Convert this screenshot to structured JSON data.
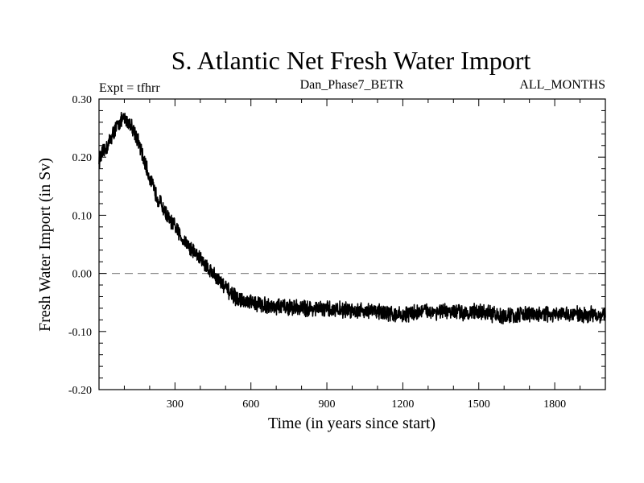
{
  "chart_data": {
    "type": "line",
    "title": "S. Atlantic Net Fresh Water Import",
    "subtitle_left": "Expt = tfhrr",
    "subtitle_center": "Dan_Phase7_BETR",
    "subtitle_right": "ALL_MONTHS",
    "xlabel": "Time (in years since start)",
    "ylabel": "Fresh Water Import (in Sv)",
    "xlim": [
      0,
      2000
    ],
    "ylim": [
      -0.2,
      0.3
    ],
    "xticks_major": [
      300,
      600,
      900,
      1200,
      1500,
      1800
    ],
    "xtick_labels": [
      "300",
      "600",
      "900",
      "1200",
      "1500",
      "1800"
    ],
    "yticks_major": [
      -0.2,
      -0.1,
      0.0,
      0.1,
      0.2,
      0.3
    ],
    "ytick_labels": [
      "-0.20",
      "-0.10",
      "0.00",
      "0.10",
      "0.20",
      "0.30"
    ],
    "reference_line": {
      "y": 0.0,
      "style": "dashed",
      "color": "#888888"
    },
    "grid": false,
    "series": [
      {
        "name": "Net Fresh Water Import",
        "color": "#000000",
        "noise_amplitude_sv": 0.012,
        "x": [
          0,
          20,
          40,
          60,
          80,
          100,
          120,
          140,
          160,
          180,
          200,
          220,
          250,
          280,
          300,
          330,
          360,
          400,
          430,
          460,
          490,
          520,
          550,
          580,
          620,
          660,
          700,
          760,
          820,
          900,
          1000,
          1100,
          1160,
          1200,
          1260,
          1300,
          1400,
          1500,
          1550,
          1600,
          1650,
          1700,
          1800,
          1900,
          2000
        ],
        "y": [
          0.195,
          0.21,
          0.225,
          0.245,
          0.26,
          0.265,
          0.26,
          0.245,
          0.22,
          0.19,
          0.165,
          0.14,
          0.115,
          0.09,
          0.08,
          0.06,
          0.045,
          0.025,
          0.01,
          -0.005,
          -0.02,
          -0.035,
          -0.045,
          -0.05,
          -0.052,
          -0.055,
          -0.057,
          -0.058,
          -0.06,
          -0.062,
          -0.063,
          -0.065,
          -0.07,
          -0.072,
          -0.066,
          -0.065,
          -0.067,
          -0.066,
          -0.07,
          -0.074,
          -0.072,
          -0.07,
          -0.072,
          -0.07,
          -0.072
        ]
      }
    ]
  }
}
